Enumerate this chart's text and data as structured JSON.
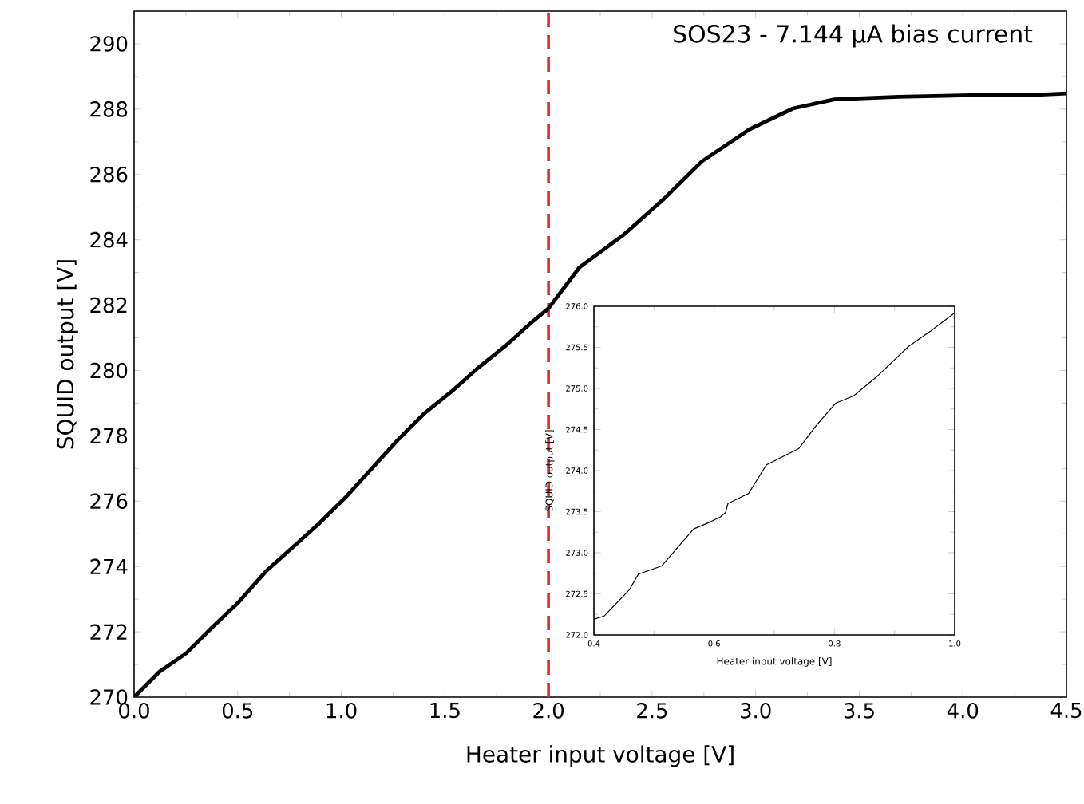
{
  "chart_data": [
    {
      "type": "line",
      "title": "SOS23 - 7.144 μA bias current",
      "xlabel": "Heater input voltage [V]",
      "ylabel": "SQUID output [V]",
      "xlim": [
        0,
        4.5
      ],
      "ylim": [
        270,
        291
      ],
      "xticks": [
        {
          "value": 0,
          "label": "0.0"
        },
        0.5,
        {
          "value": 1,
          "label": "1.0"
        },
        1.5,
        {
          "value": 2,
          "label": "2.0"
        },
        2.5,
        {
          "value": 3,
          "label": "3.0"
        },
        3.5,
        {
          "value": 4,
          "label": "4.0"
        },
        4.5
      ],
      "yticks": [
        270,
        272,
        274,
        276,
        278,
        280,
        282,
        284,
        286,
        288,
        290
      ],
      "ref_lines": [
        {
          "axis": "x",
          "value": 2,
          "color": "#e8262a",
          "line_style": "dashed"
        }
      ],
      "series": [
        {
          "color": "#000000",
          "x": [
            0.0,
            0.123,
            0.251,
            0.379,
            0.5,
            0.636,
            0.764,
            0.892,
            1.021,
            1.149,
            1.277,
            1.405,
            1.533,
            1.662,
            1.79,
            1.918,
            2.0,
            2.15,
            2.36,
            2.56,
            2.74,
            2.97,
            3.18,
            3.38,
            3.69,
            4.08,
            4.34,
            4.5
          ],
          "values": [
            270.0,
            270.78,
            271.34,
            272.15,
            272.88,
            273.85,
            274.58,
            275.31,
            276.12,
            277.01,
            277.9,
            278.71,
            279.36,
            280.09,
            280.74,
            281.47,
            281.9,
            283.16,
            284.14,
            285.27,
            286.4,
            287.38,
            288.02,
            288.3,
            288.38,
            288.43,
            288.43,
            288.48
          ]
        }
      ]
    },
    {
      "type": "line",
      "xlabel": "Heater input voltage [V]",
      "ylabel": "SQUID output [V]",
      "xlim": [
        0.4,
        1.0
      ],
      "ylim": [
        272,
        276
      ],
      "xticks": [
        0.4,
        0.6,
        0.8,
        {
          "value": 1,
          "label": "1.0"
        }
      ],
      "yticks": [
        {
          "value": 272,
          "label": "272.0"
        },
        272.5,
        {
          "value": 273,
          "label": "273.0"
        },
        273.5,
        {
          "value": 274,
          "label": "274.0"
        },
        274.5,
        {
          "value": 275,
          "label": "275.0"
        },
        275.5,
        {
          "value": 276,
          "label": "276.0"
        }
      ],
      "series": [
        {
          "color": "#000000",
          "x": [
            0.4,
            0.417,
            0.459,
            0.474,
            0.513,
            0.547,
            0.566,
            0.589,
            0.611,
            0.619,
            0.623,
            0.657,
            0.687,
            0.741,
            0.771,
            0.802,
            0.832,
            0.87,
            0.923,
            0.96,
            1.0
          ],
          "values": [
            272.19,
            272.23,
            272.55,
            272.74,
            272.84,
            273.13,
            273.29,
            273.36,
            273.44,
            273.49,
            273.6,
            273.72,
            274.07,
            274.27,
            274.56,
            274.82,
            274.91,
            275.14,
            275.51,
            275.7,
            275.92
          ]
        }
      ]
    }
  ]
}
